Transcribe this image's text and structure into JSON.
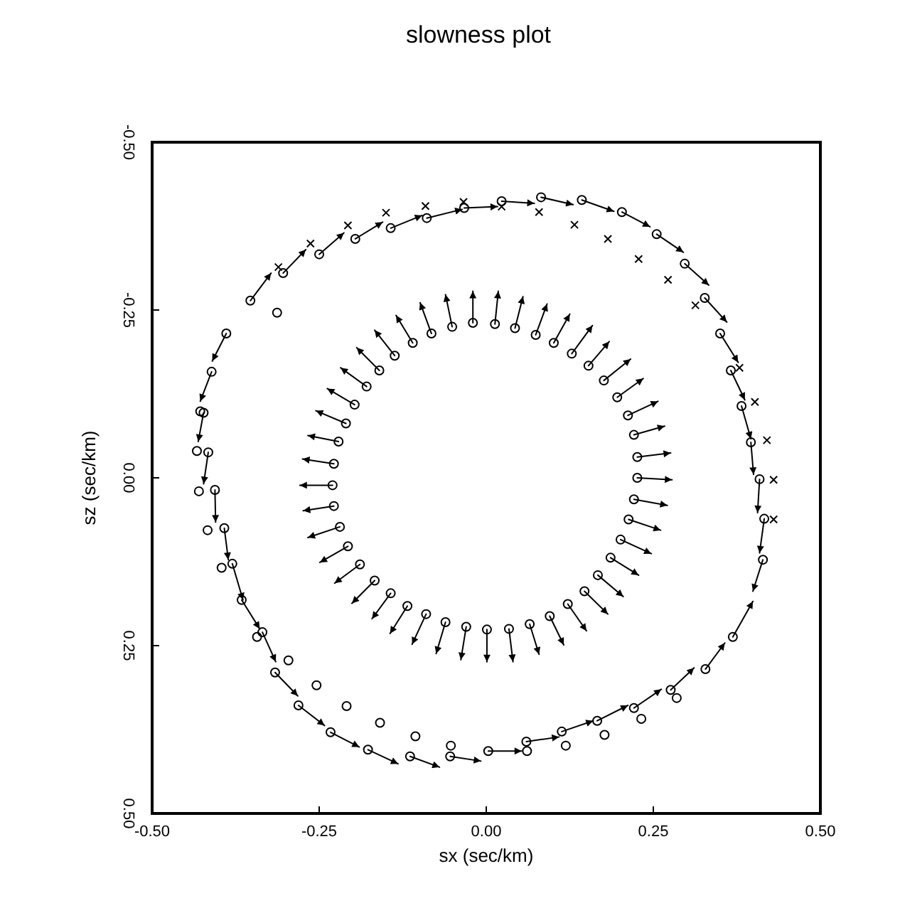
{
  "chart_data": {
    "type": "scatter",
    "title": "slowness plot",
    "xlabel": "sx (sec/km)",
    "ylabel": "sz (sec/km)",
    "xlim": [
      -0.5,
      0.5
    ],
    "ylim": [
      0.5,
      -0.5
    ],
    "xticks": [
      {
        "value": -0.5,
        "label": "-0.50"
      },
      {
        "value": -0.25,
        "label": "-0.25"
      },
      {
        "value": 0,
        "label": "0.00"
      },
      {
        "value": 0.25,
        "label": "0.25"
      },
      {
        "value": 0.5,
        "label": "0.50"
      }
    ],
    "yticks": [
      {
        "value": -0.5,
        "label": "-0.50"
      },
      {
        "value": -0.25,
        "label": "-0.25"
      },
      {
        "value": 0,
        "label": "0.00"
      },
      {
        "value": 0.25,
        "label": "0.25"
      },
      {
        "value": 0.5,
        "label": "0.50"
      }
    ],
    "series": [
      {
        "marker": "circle",
        "color": "#000000",
        "x": [
          -0.02,
          -0.051,
          -0.082,
          -0.11,
          -0.137,
          -0.16,
          -0.179,
          -0.197,
          -0.21,
          -0.221,
          -0.228,
          -0.23,
          -0.228,
          -0.219,
          -0.207,
          -0.189,
          -0.167,
          -0.143,
          -0.118,
          -0.09,
          -0.061,
          -0.03,
          0.001,
          0.034,
          0.065,
          0.095,
          0.122,
          0.147,
          0.167,
          0.186,
          0.201,
          0.213,
          0.221,
          0.226,
          0.226,
          0.221,
          0.212,
          0.196,
          0.176,
          0.153,
          0.128,
          0.101,
          0.074,
          0.043,
          0.013,
          -0.353,
          -0.304,
          -0.25,
          -0.196,
          -0.143,
          -0.089,
          -0.033,
          0.023,
          0.082,
          0.143,
          0.203,
          0.255,
          0.297,
          0.327,
          0.35,
          0.366,
          0.382,
          0.396,
          0.409,
          0.416,
          0.414,
          0.369,
          0.328,
          0.276,
          0.221,
          0.166,
          0.113,
          0.06,
          0.003,
          -0.054,
          -0.114,
          -0.177,
          -0.233,
          -0.281,
          -0.316,
          -0.335,
          -0.366,
          -0.38,
          -0.392,
          -0.406,
          -0.416,
          -0.389,
          -0.411,
          -0.423,
          -0.428,
          -0.313,
          -0.433,
          -0.43,
          -0.417,
          -0.396,
          -0.343,
          -0.296,
          -0.254,
          -0.209,
          -0.159,
          -0.106,
          -0.053,
          0.061,
          0.119,
          0.177,
          0.232,
          0.285
        ],
        "values": [
          -0.231,
          -0.225,
          -0.215,
          -0.201,
          -0.182,
          -0.16,
          -0.136,
          -0.109,
          -0.081,
          -0.054,
          -0.021,
          0.011,
          0.042,
          0.073,
          0.102,
          0.129,
          0.153,
          0.172,
          0.191,
          0.203,
          0.215,
          0.222,
          0.226,
          0.225,
          0.218,
          0.206,
          0.188,
          0.169,
          0.145,
          0.119,
          0.092,
          0.062,
          0.032,
          0.0,
          -0.031,
          -0.064,
          -0.093,
          -0.12,
          -0.145,
          -0.167,
          -0.185,
          -0.201,
          -0.213,
          -0.223,
          -0.229,
          -0.264,
          -0.305,
          -0.333,
          -0.356,
          -0.372,
          -0.387,
          -0.402,
          -0.412,
          -0.418,
          -0.414,
          -0.396,
          -0.363,
          -0.319,
          -0.268,
          -0.215,
          -0.16,
          -0.107,
          -0.053,
          0.002,
          0.061,
          0.122,
          0.237,
          0.285,
          0.316,
          0.343,
          0.362,
          0.378,
          0.393,
          0.407,
          0.415,
          0.415,
          0.405,
          0.379,
          0.339,
          0.29,
          0.23,
          0.182,
          0.128,
          0.075,
          0.018,
          -0.038,
          -0.215,
          -0.158,
          -0.097,
          -0.099,
          -0.246,
          -0.04,
          0.02,
          0.078,
          0.134,
          0.237,
          0.272,
          0.309,
          0.34,
          0.365,
          0.385,
          0.399,
          0.407,
          0.399,
          0.383,
          0.359,
          0.328
        ]
      },
      {
        "type": "line",
        "color": "#000000",
        "x": [
          -0.02,
          -0.02
        ],
        "values": [
          -0.231,
          -0.278
        ]
      },
      {
        "type": "line",
        "color": "#000000",
        "x": [
          -0.051,
          -0.061
        ],
        "values": [
          -0.225,
          -0.273
        ]
      },
      {
        "type": "line",
        "color": "#000000",
        "x": [
          -0.082,
          -0.099
        ],
        "values": [
          -0.215,
          -0.261
        ]
      },
      {
        "type": "line",
        "color": "#000000",
        "x": [
          -0.11,
          -0.135
        ],
        "values": [
          -0.201,
          -0.242
        ]
      },
      {
        "type": "line",
        "color": "#000000",
        "x": [
          -0.137,
          -0.167
        ],
        "values": [
          -0.182,
          -0.22
        ]
      },
      {
        "type": "line",
        "color": "#000000",
        "x": [
          -0.16,
          -0.194
        ],
        "values": [
          -0.16,
          -0.194
        ]
      },
      {
        "type": "line",
        "color": "#000000",
        "x": [
          -0.179,
          -0.218
        ],
        "values": [
          -0.136,
          -0.164
        ]
      },
      {
        "type": "line",
        "color": "#000000",
        "x": [
          -0.197,
          -0.238
        ],
        "values": [
          -0.109,
          -0.133
        ]
      },
      {
        "type": "line",
        "color": "#000000",
        "x": [
          -0.21,
          -0.255
        ],
        "values": [
          -0.081,
          -0.1
        ]
      },
      {
        "type": "line",
        "color": "#000000",
        "x": [
          -0.221,
          -0.267
        ],
        "values": [
          -0.054,
          -0.063
        ]
      },
      {
        "type": "line",
        "color": "#000000",
        "x": [
          -0.228,
          -0.275
        ],
        "values": [
          -0.021,
          -0.028
        ]
      },
      {
        "type": "line",
        "color": "#000000",
        "x": [
          -0.23,
          -0.279
        ],
        "values": [
          0.011,
          0.011
        ]
      },
      {
        "type": "line",
        "color": "#000000",
        "x": [
          -0.228,
          -0.274
        ],
        "values": [
          0.042,
          0.049
        ]
      },
      {
        "type": "line",
        "color": "#000000",
        "x": [
          -0.219,
          -0.267
        ],
        "values": [
          0.073,
          0.089
        ]
      },
      {
        "type": "line",
        "color": "#000000",
        "x": [
          -0.207,
          -0.249
        ],
        "values": [
          0.102,
          0.126
        ]
      },
      {
        "type": "line",
        "color": "#000000",
        "x": [
          -0.189,
          -0.227
        ],
        "values": [
          0.129,
          0.157
        ]
      },
      {
        "type": "line",
        "color": "#000000",
        "x": [
          -0.167,
          -0.201
        ],
        "values": [
          0.153,
          0.187
        ]
      },
      {
        "type": "line",
        "color": "#000000",
        "x": [
          -0.143,
          -0.171
        ],
        "values": [
          0.172,
          0.21
        ]
      },
      {
        "type": "line",
        "color": "#000000",
        "x": [
          -0.118,
          -0.144
        ],
        "values": [
          0.191,
          0.232
        ]
      },
      {
        "type": "line",
        "color": "#000000",
        "x": [
          -0.09,
          -0.111
        ],
        "values": [
          0.203,
          0.248
        ]
      },
      {
        "type": "line",
        "color": "#000000",
        "x": [
          -0.061,
          -0.075
        ],
        "values": [
          0.215,
          0.262
        ]
      },
      {
        "type": "line",
        "color": "#000000",
        "x": [
          -0.03,
          -0.038
        ],
        "values": [
          0.222,
          0.271
        ]
      },
      {
        "type": "line",
        "color": "#000000",
        "x": [
          0.001,
          0.001
        ],
        "values": [
          0.226,
          0.274
        ]
      },
      {
        "type": "line",
        "color": "#000000",
        "x": [
          0.034,
          0.04
        ],
        "values": [
          0.225,
          0.274
        ]
      },
      {
        "type": "line",
        "color": "#000000",
        "x": [
          0.065,
          0.079
        ],
        "values": [
          0.218,
          0.263
        ]
      },
      {
        "type": "line",
        "color": "#000000",
        "x": [
          0.095,
          0.116
        ],
        "values": [
          0.206,
          0.249
        ]
      },
      {
        "type": "line",
        "color": "#000000",
        "x": [
          0.122,
          0.15
        ],
        "values": [
          0.188,
          0.228
        ]
      },
      {
        "type": "line",
        "color": "#000000",
        "x": [
          0.147,
          0.182
        ],
        "values": [
          0.169,
          0.203
        ]
      },
      {
        "type": "line",
        "color": "#000000",
        "x": [
          0.167,
          0.205
        ],
        "values": [
          0.145,
          0.177
        ]
      },
      {
        "type": "line",
        "color": "#000000",
        "x": [
          0.186,
          0.228
        ],
        "values": [
          0.119,
          0.145
        ]
      },
      {
        "type": "line",
        "color": "#000000",
        "x": [
          0.201,
          0.247
        ],
        "values": [
          0.092,
          0.113
        ]
      },
      {
        "type": "line",
        "color": "#000000",
        "x": [
          0.213,
          0.261
        ],
        "values": [
          0.062,
          0.078
        ]
      },
      {
        "type": "line",
        "color": "#000000",
        "x": [
          0.221,
          0.271
        ],
        "values": [
          0.032,
          0.041
        ]
      },
      {
        "type": "line",
        "color": "#000000",
        "x": [
          0.226,
          0.278
        ],
        "values": [
          0.0,
          0.003
        ]
      },
      {
        "type": "line",
        "color": "#000000",
        "x": [
          0.226,
          0.276
        ],
        "values": [
          -0.031,
          -0.037
        ]
      },
      {
        "type": "line",
        "color": "#000000",
        "x": [
          0.221,
          0.267
        ],
        "values": [
          -0.064,
          -0.077
        ]
      },
      {
        "type": "line",
        "color": "#000000",
        "x": [
          0.212,
          0.257
        ],
        "values": [
          -0.093,
          -0.114
        ]
      },
      {
        "type": "line",
        "color": "#000000",
        "x": [
          0.196,
          0.235
        ],
        "values": [
          -0.12,
          -0.148
        ]
      },
      {
        "type": "line",
        "color": "#000000",
        "x": [
          0.176,
          0.216
        ],
        "values": [
          -0.145,
          -0.177
        ]
      },
      {
        "type": "line",
        "color": "#000000",
        "x": [
          0.153,
          0.184
        ],
        "values": [
          -0.167,
          -0.203
        ]
      },
      {
        "type": "line",
        "color": "#000000",
        "x": [
          0.128,
          0.159
        ],
        "values": [
          -0.185,
          -0.227
        ]
      },
      {
        "type": "line",
        "color": "#000000",
        "x": [
          0.101,
          0.125
        ],
        "values": [
          -0.201,
          -0.244
        ]
      },
      {
        "type": "line",
        "color": "#000000",
        "x": [
          0.074,
          0.091
        ],
        "values": [
          -0.213,
          -0.259
        ]
      },
      {
        "type": "line",
        "color": "#000000",
        "x": [
          0.043,
          0.055
        ],
        "values": [
          -0.223,
          -0.27
        ]
      },
      {
        "type": "line",
        "color": "#000000",
        "x": [
          0.013,
          0.018
        ],
        "values": [
          -0.229,
          -0.278
        ]
      },
      {
        "type": "line",
        "color": "#000000",
        "x": [
          -0.353,
          -0.322
        ],
        "values": [
          -0.264,
          -0.305
        ]
      },
      {
        "type": "line",
        "color": "#000000",
        "x": [
          -0.304,
          -0.27
        ],
        "values": [
          -0.305,
          -0.34
        ]
      },
      {
        "type": "line",
        "color": "#000000",
        "x": [
          -0.25,
          -0.213
        ],
        "values": [
          -0.333,
          -0.365
        ]
      },
      {
        "type": "line",
        "color": "#000000",
        "x": [
          -0.196,
          -0.155
        ],
        "values": [
          -0.356,
          -0.381
        ]
      },
      {
        "type": "line",
        "color": "#000000",
        "x": [
          -0.143,
          -0.096
        ],
        "values": [
          -0.372,
          -0.391
        ]
      },
      {
        "type": "line",
        "color": "#000000",
        "x": [
          -0.089,
          -0.036
        ],
        "values": [
          -0.387,
          -0.4
        ]
      },
      {
        "type": "line",
        "color": "#000000",
        "x": [
          -0.033,
          0.017
        ],
        "values": [
          -0.402,
          -0.404
        ]
      },
      {
        "type": "line",
        "color": "#000000",
        "x": [
          0.023,
          0.072
        ],
        "values": [
          -0.412,
          -0.409
        ]
      },
      {
        "type": "line",
        "color": "#000000",
        "x": [
          0.082,
          0.13
        ],
        "values": [
          -0.418,
          -0.407
        ]
      },
      {
        "type": "line",
        "color": "#000000",
        "x": [
          0.143,
          0.191
        ],
        "values": [
          -0.414,
          -0.397
        ]
      },
      {
        "type": "line",
        "color": "#000000",
        "x": [
          0.203,
          0.245
        ],
        "values": [
          -0.396,
          -0.374
        ]
      },
      {
        "type": "line",
        "color": "#000000",
        "x": [
          0.255,
          0.295
        ],
        "values": [
          -0.363,
          -0.336
        ]
      },
      {
        "type": "line",
        "color": "#000000",
        "x": [
          0.297,
          0.333
        ],
        "values": [
          -0.319,
          -0.287
        ]
      },
      {
        "type": "line",
        "color": "#000000",
        "x": [
          0.327,
          0.36
        ],
        "values": [
          -0.268,
          -0.232
        ]
      },
      {
        "type": "line",
        "color": "#000000",
        "x": [
          0.35,
          0.377
        ],
        "values": [
          -0.215,
          -0.172
        ]
      },
      {
        "type": "line",
        "color": "#000000",
        "x": [
          0.366,
          0.387
        ],
        "values": [
          -0.16,
          -0.116
        ]
      },
      {
        "type": "line",
        "color": "#000000",
        "x": [
          0.382,
          0.396
        ],
        "values": [
          -0.107,
          -0.058
        ]
      },
      {
        "type": "line",
        "color": "#000000",
        "x": [
          0.396,
          0.4
        ],
        "values": [
          -0.053,
          -0.005
        ]
      },
      {
        "type": "line",
        "color": "#000000",
        "x": [
          0.409,
          0.406
        ],
        "values": [
          0.002,
          0.052
        ]
      },
      {
        "type": "line",
        "color": "#000000",
        "x": [
          0.416,
          0.409
        ],
        "values": [
          0.061,
          0.112
        ]
      },
      {
        "type": "line",
        "color": "#000000",
        "x": [
          0.414,
          0.399
        ],
        "values": [
          0.122,
          0.169
        ]
      },
      {
        "type": "line",
        "color": "#000000",
        "x": [
          0.369,
          0.399
        ],
        "values": [
          0.237,
          0.184
        ]
      },
      {
        "type": "line",
        "color": "#000000",
        "x": [
          0.328,
          0.357
        ],
        "values": [
          0.285,
          0.246
        ]
      },
      {
        "type": "line",
        "color": "#000000",
        "x": [
          0.276,
          0.311
        ],
        "values": [
          0.316,
          0.283
        ]
      },
      {
        "type": "line",
        "color": "#000000",
        "x": [
          0.221,
          0.262
        ],
        "values": [
          0.343,
          0.315
        ]
      },
      {
        "type": "line",
        "color": "#000000",
        "x": [
          0.166,
          0.212
        ],
        "values": [
          0.362,
          0.339
        ]
      },
      {
        "type": "line",
        "color": "#000000",
        "x": [
          0.113,
          0.16
        ],
        "values": [
          0.378,
          0.362
        ]
      },
      {
        "type": "line",
        "color": "#000000",
        "x": [
          0.06,
          0.109
        ],
        "values": [
          0.393,
          0.386
        ]
      },
      {
        "type": "line",
        "color": "#000000",
        "x": [
          0.003,
          0.053
        ],
        "values": [
          0.407,
          0.407
        ]
      },
      {
        "type": "line",
        "color": "#000000",
        "x": [
          -0.054,
          -0.008
        ],
        "values": [
          0.415,
          0.422
        ]
      },
      {
        "type": "line",
        "color": "#000000",
        "x": [
          -0.114,
          -0.07
        ],
        "values": [
          0.415,
          0.431
        ]
      },
      {
        "type": "line",
        "color": "#000000",
        "x": [
          -0.177,
          -0.132
        ],
        "values": [
          0.405,
          0.426
        ]
      },
      {
        "type": "line",
        "color": "#000000",
        "x": [
          -0.233,
          -0.19
        ],
        "values": [
          0.379,
          0.401
        ]
      },
      {
        "type": "line",
        "color": "#000000",
        "x": [
          -0.281,
          -0.242
        ],
        "values": [
          0.339,
          0.369
        ]
      },
      {
        "type": "line",
        "color": "#000000",
        "x": [
          -0.316,
          -0.282
        ],
        "values": [
          0.29,
          0.325
        ]
      },
      {
        "type": "line",
        "color": "#000000",
        "x": [
          -0.335,
          -0.315
        ],
        "values": [
          0.23,
          0.274
        ]
      },
      {
        "type": "line",
        "color": "#000000",
        "x": [
          -0.366,
          -0.339
        ],
        "values": [
          0.182,
          0.225
        ]
      },
      {
        "type": "line",
        "color": "#000000",
        "x": [
          -0.38,
          -0.364
        ],
        "values": [
          0.128,
          0.182
        ]
      },
      {
        "type": "line",
        "color": "#000000",
        "x": [
          -0.392,
          -0.386
        ],
        "values": [
          0.075,
          0.122
        ]
      },
      {
        "type": "line",
        "color": "#000000",
        "x": [
          -0.406,
          -0.405
        ],
        "values": [
          0.018,
          0.066
        ]
      },
      {
        "type": "line",
        "color": "#000000",
        "x": [
          -0.416,
          -0.423
        ],
        "values": [
          -0.038,
          0.009
        ]
      },
      {
        "type": "line",
        "color": "#000000",
        "x": [
          -0.389,
          -0.41
        ],
        "values": [
          -0.215,
          -0.174
        ]
      },
      {
        "type": "line",
        "color": "#000000",
        "x": [
          -0.411,
          -0.428
        ],
        "values": [
          -0.158,
          -0.114
        ]
      },
      {
        "type": "line",
        "color": "#000000",
        "x": [
          -0.423,
          -0.431
        ],
        "values": [
          -0.097,
          -0.054
        ]
      },
      {
        "marker": "cross",
        "color": "#000000",
        "x": [
          -0.311,
          -0.263,
          -0.207,
          -0.15,
          -0.091,
          -0.034,
          0.023,
          0.079,
          0.132,
          0.182,
          0.228,
          0.272,
          0.313,
          0.379,
          0.402,
          0.42,
          0.43,
          0.43
        ],
        "values": [
          -0.314,
          -0.349,
          -0.376,
          -0.395,
          -0.405,
          -0.411,
          -0.404,
          -0.396,
          -0.377,
          -0.356,
          -0.326,
          -0.295,
          -0.257,
          -0.164,
          -0.113,
          -0.056,
          0.003,
          0.062
        ]
      }
    ]
  }
}
